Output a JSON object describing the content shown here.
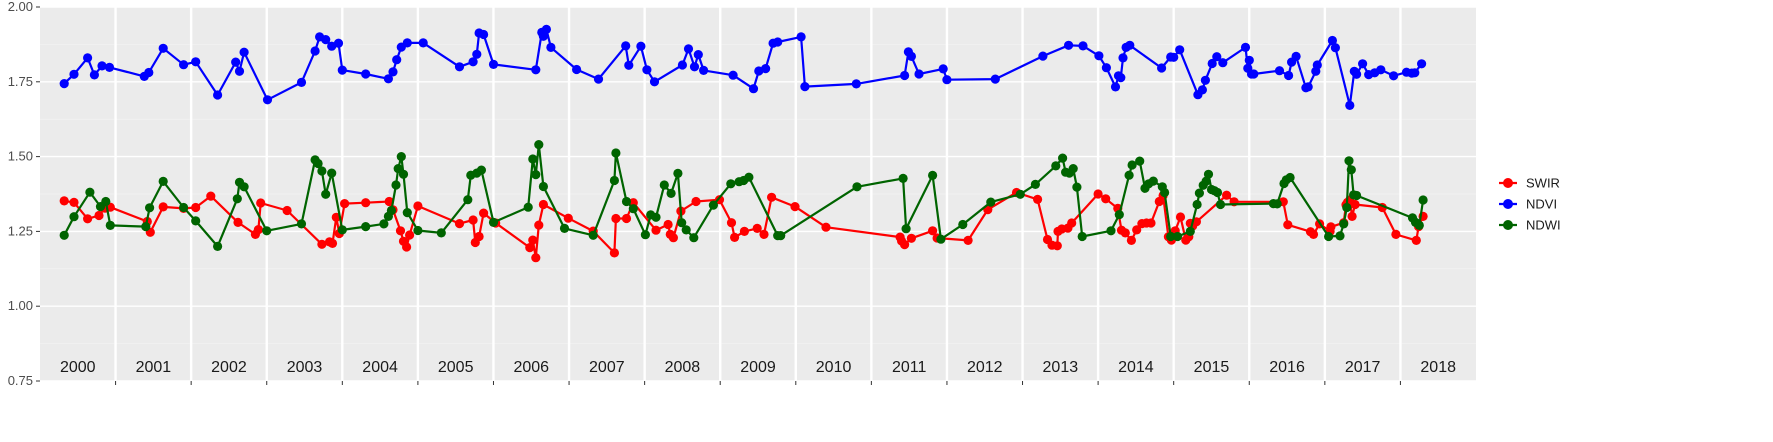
{
  "chart_data": {
    "type": "line",
    "title": "",
    "xlabel": "",
    "ylabel": "",
    "xlim": [
      2000.0,
      2019.0
    ],
    "ylim": [
      0.75,
      2.0
    ],
    "y_ticks": [
      "0.75",
      "1.00",
      "1.25",
      "1.50",
      "1.75",
      "2.00"
    ],
    "year_labels": [
      "2000",
      "2001",
      "2002",
      "2003",
      "2004",
      "2005",
      "2006",
      "2007",
      "2008",
      "2009",
      "2010",
      "2011",
      "2012",
      "2013",
      "2014",
      "2015",
      "2016",
      "2017",
      "2018"
    ],
    "year_boundaries": [
      2001,
      2002,
      2003,
      2004,
      2005,
      2006,
      2007,
      2008,
      2009,
      2010,
      2011,
      2012,
      2013,
      2014,
      2015,
      2016,
      2017,
      2018
    ],
    "grid": true,
    "legend_position": "right",
    "colors": {
      "panel": "#ebebeb",
      "grid_major": "#ffffff",
      "grid_minor": "#f2f2f2"
    },
    "series": [
      {
        "name": "SWIR",
        "color": "#ff0000",
        "x": [
          2000.32,
          2000.45,
          2000.63,
          2000.78,
          2000.86,
          2000.93,
          2001.42,
          2001.46,
          2001.63,
          2001.9,
          2002.06,
          2002.26,
          2002.62,
          2002.85,
          2002.89,
          2002.92,
          2003.27,
          2003.73,
          2003.83,
          2003.87,
          2003.92,
          2003.96,
          2004.03,
          2004.31,
          2004.62,
          2004.67,
          2004.77,
          2004.81,
          2004.85,
          2004.89,
          2005.0,
          2005.55,
          2005.73,
          2005.76,
          2005.81,
          2005.87,
          2006.03,
          2006.48,
          2006.52,
          2006.56,
          2006.6,
          2006.66,
          2006.99,
          2007.32,
          2007.6,
          2007.62,
          2007.76,
          2007.85,
          2008.15,
          2008.31,
          2008.34,
          2008.38,
          2008.48,
          2008.68,
          2008.99,
          2009.15,
          2009.19,
          2009.32,
          2009.49,
          2009.58,
          2009.68,
          2009.99,
          2010.4,
          2011.38,
          2011.4,
          2011.44,
          2011.53,
          2011.81,
          2011.87,
          2012.28,
          2012.54,
          2012.92,
          2013.2,
          2013.33,
          2013.39,
          2013.46,
          2013.47,
          2013.52,
          2013.6,
          2013.65,
          2014.0,
          2014.1,
          2014.26,
          2014.31,
          2014.36,
          2014.44,
          2014.51,
          2014.58,
          2014.64,
          2014.7,
          2014.81,
          2014.86,
          2014.93,
          2014.97,
          2015.02,
          2015.09,
          2015.16,
          2015.2,
          2015.22,
          2015.25,
          2015.3,
          2015.7,
          2015.8,
          2016.45,
          2016.51,
          2016.81,
          2016.85,
          2016.93,
          2017.07,
          2017.08,
          2017.25,
          2017.28,
          2017.3,
          2017.33,
          2017.36,
          2017.4,
          2017.76,
          2017.94,
          2018.21,
          2018.24,
          2018.3
        ],
        "y": [
          1.352,
          1.347,
          1.292,
          1.303,
          1.328,
          1.331,
          1.283,
          1.247,
          1.332,
          1.327,
          1.33,
          1.368,
          1.28,
          1.24,
          1.256,
          1.345,
          1.32,
          1.207,
          1.215,
          1.21,
          1.297,
          1.243,
          1.343,
          1.346,
          1.35,
          1.322,
          1.252,
          1.217,
          1.198,
          1.238,
          1.335,
          1.276,
          1.288,
          1.213,
          1.233,
          1.311,
          1.278,
          1.196,
          1.221,
          1.162,
          1.271,
          1.34,
          1.294,
          1.251,
          1.178,
          1.293,
          1.293,
          1.346,
          1.254,
          1.273,
          1.24,
          1.229,
          1.318,
          1.35,
          1.356,
          1.279,
          1.23,
          1.25,
          1.26,
          1.24,
          1.364,
          1.333,
          1.264,
          1.231,
          1.218,
          1.206,
          1.227,
          1.252,
          1.228,
          1.22,
          1.323,
          1.38,
          1.357,
          1.223,
          1.204,
          1.202,
          1.25,
          1.258,
          1.261,
          1.278,
          1.375,
          1.359,
          1.327,
          1.254,
          1.245,
          1.22,
          1.255,
          1.276,
          1.278,
          1.278,
          1.35,
          1.37,
          1.232,
          1.221,
          1.252,
          1.298,
          1.221,
          1.232,
          1.277,
          1.268,
          1.282,
          1.371,
          1.349,
          1.349,
          1.272,
          1.249,
          1.24,
          1.275,
          1.25,
          1.265,
          1.279,
          1.339,
          1.347,
          1.355,
          1.3,
          1.34,
          1.33,
          1.24,
          1.22,
          1.266,
          1.3
        ]
      },
      {
        "name": "NDVI",
        "color": "#0000ff",
        "x": [
          2000.32,
          2000.45,
          2000.63,
          2000.72,
          2000.82,
          2000.92,
          2001.38,
          2001.44,
          2001.63,
          2001.9,
          2002.06,
          2002.35,
          2002.59,
          2002.64,
          2002.7,
          2003.01,
          2003.46,
          2003.64,
          2003.7,
          2003.78,
          2003.86,
          2003.95,
          2004.0,
          2004.31,
          2004.61,
          2004.67,
          2004.72,
          2004.78,
          2004.86,
          2005.07,
          2005.55,
          2005.73,
          2005.78,
          2005.81,
          2005.87,
          2006.0,
          2006.56,
          2006.64,
          2006.66,
          2006.7,
          2006.76,
          2007.1,
          2007.39,
          2007.75,
          2007.79,
          2007.95,
          2008.03,
          2008.13,
          2008.5,
          2008.58,
          2008.66,
          2008.71,
          2008.78,
          2009.17,
          2009.44,
          2009.51,
          2009.6,
          2009.7,
          2009.76,
          2010.07,
          2010.12,
          2010.8,
          2011.44,
          2011.49,
          2011.53,
          2011.63,
          2011.95,
          2012.0,
          2012.64,
          2013.27,
          2013.61,
          2013.8,
          2014.01,
          2014.11,
          2014.23,
          2014.27,
          2014.3,
          2014.33,
          2014.37,
          2014.42,
          2014.84,
          2014.96,
          2015.0,
          2015.08,
          2015.32,
          2015.38,
          2015.42,
          2015.51,
          2015.57,
          2015.65,
          2015.95,
          2015.98,
          2016.0,
          2016.03,
          2016.06,
          2016.4,
          2016.52,
          2016.56,
          2016.62,
          2016.75,
          2016.78,
          2016.88,
          2016.9,
          2017.1,
          2017.14,
          2017.33,
          2017.39,
          2017.42,
          2017.5,
          2017.58,
          2017.66,
          2017.74,
          2017.91,
          2018.08,
          2018.15,
          2018.19,
          2018.28
        ],
        "y": [
          1.744,
          1.775,
          1.83,
          1.773,
          1.803,
          1.798,
          1.768,
          1.781,
          1.862,
          1.807,
          1.817,
          1.706,
          1.816,
          1.785,
          1.849,
          1.69,
          1.748,
          1.853,
          1.9,
          1.891,
          1.869,
          1.879,
          1.789,
          1.776,
          1.76,
          1.783,
          1.824,
          1.866,
          1.88,
          1.88,
          1.8,
          1.817,
          1.842,
          1.913,
          1.908,
          1.808,
          1.79,
          1.915,
          1.902,
          1.925,
          1.865,
          1.791,
          1.759,
          1.87,
          1.805,
          1.869,
          1.79,
          1.75,
          1.806,
          1.86,
          1.8,
          1.841,
          1.788,
          1.772,
          1.727,
          1.786,
          1.794,
          1.879,
          1.883,
          1.9,
          1.734,
          1.743,
          1.771,
          1.85,
          1.835,
          1.776,
          1.793,
          1.757,
          1.759,
          1.836,
          1.872,
          1.87,
          1.837,
          1.797,
          1.733,
          1.77,
          1.764,
          1.83,
          1.865,
          1.872,
          1.796,
          1.833,
          1.832,
          1.857,
          1.707,
          1.723,
          1.755,
          1.811,
          1.834,
          1.814,
          1.865,
          1.795,
          1.822,
          1.776,
          1.776,
          1.787,
          1.771,
          1.816,
          1.835,
          1.73,
          1.733,
          1.785,
          1.806,
          1.888,
          1.864,
          1.671,
          1.785,
          1.775,
          1.81,
          1.774,
          1.78,
          1.79,
          1.77,
          1.782,
          1.779,
          1.78,
          1.81
        ]
      },
      {
        "name": "NDWI",
        "color": "#006400",
        "x": [
          2000.32,
          2000.45,
          2000.66,
          2000.8,
          2000.87,
          2000.93,
          2001.4,
          2001.45,
          2001.63,
          2001.9,
          2002.06,
          2002.35,
          2002.61,
          2002.64,
          2002.7,
          2003.0,
          2003.46,
          2003.64,
          2003.68,
          2003.73,
          2003.78,
          2003.86,
          2004.0,
          2004.31,
          2004.55,
          2004.61,
          2004.65,
          2004.71,
          2004.74,
          2004.78,
          2004.81,
          2004.86,
          2005.0,
          2005.31,
          2005.66,
          2005.7,
          2005.78,
          2005.84,
          2006.0,
          2006.46,
          2006.52,
          2006.56,
          2006.6,
          2006.66,
          2006.94,
          2007.32,
          2007.6,
          2007.62,
          2007.76,
          2007.85,
          2008.01,
          2008.08,
          2008.15,
          2008.26,
          2008.35,
          2008.44,
          2008.49,
          2008.55,
          2008.65,
          2008.91,
          2009.14,
          2009.25,
          2009.31,
          2009.38,
          2009.76,
          2009.8,
          2010.81,
          2011.42,
          2011.46,
          2011.81,
          2011.92,
          2012.21,
          2012.58,
          2012.97,
          2013.17,
          2013.44,
          2013.53,
          2013.57,
          2013.62,
          2013.67,
          2013.72,
          2013.79,
          2014.17,
          2014.28,
          2014.41,
          2014.45,
          2014.55,
          2014.62,
          2014.67,
          2014.73,
          2014.85,
          2014.88,
          2014.96,
          2015.05,
          2015.22,
          2015.31,
          2015.34,
          2015.39,
          2015.43,
          2015.46,
          2015.5,
          2015.54,
          2015.58,
          2015.62,
          2016.32,
          2016.37,
          2016.46,
          2016.49,
          2016.54,
          2017.05,
          2017.2,
          2017.25,
          2017.29,
          2017.32,
          2017.35,
          2017.38,
          2017.42,
          2018.16,
          2018.2,
          2018.25,
          2018.3
        ],
        "y": [
          1.237,
          1.299,
          1.381,
          1.333,
          1.35,
          1.27,
          1.266,
          1.329,
          1.417,
          1.33,
          1.285,
          1.2,
          1.359,
          1.414,
          1.399,
          1.252,
          1.275,
          1.489,
          1.477,
          1.452,
          1.374,
          1.445,
          1.255,
          1.266,
          1.275,
          1.3,
          1.32,
          1.405,
          1.46,
          1.5,
          1.441,
          1.313,
          1.253,
          1.245,
          1.356,
          1.438,
          1.445,
          1.455,
          1.28,
          1.331,
          1.492,
          1.44,
          1.54,
          1.4,
          1.26,
          1.237,
          1.42,
          1.512,
          1.35,
          1.326,
          1.239,
          1.305,
          1.297,
          1.405,
          1.377,
          1.444,
          1.279,
          1.255,
          1.229,
          1.338,
          1.409,
          1.416,
          1.42,
          1.431,
          1.236,
          1.236,
          1.399,
          1.427,
          1.259,
          1.437,
          1.224,
          1.273,
          1.348,
          1.374,
          1.407,
          1.469,
          1.495,
          1.448,
          1.445,
          1.46,
          1.398,
          1.233,
          1.252,
          1.306,
          1.438,
          1.472,
          1.485,
          1.394,
          1.409,
          1.418,
          1.399,
          1.38,
          1.233,
          1.233,
          1.25,
          1.34,
          1.378,
          1.404,
          1.418,
          1.441,
          1.39,
          1.386,
          1.38,
          1.34,
          1.343,
          1.342,
          1.41,
          1.422,
          1.43,
          1.233,
          1.235,
          1.275,
          1.33,
          1.486,
          1.456,
          1.372,
          1.37,
          1.295,
          1.28,
          1.27,
          1.355
        ]
      }
    ]
  }
}
